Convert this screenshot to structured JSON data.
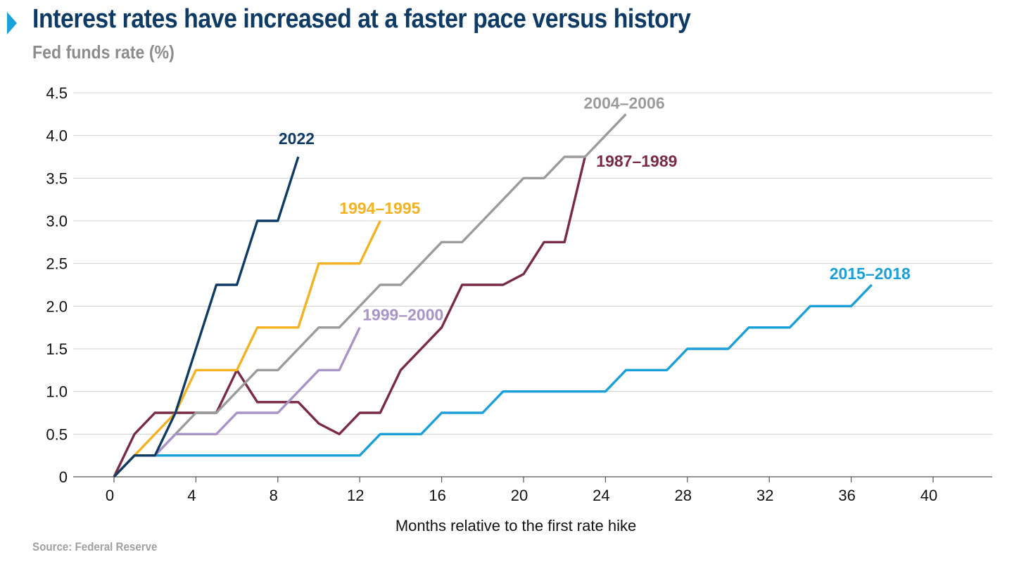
{
  "header": {
    "title": "Interest rates have increased at a faster pace versus history",
    "subtitle": "Fed funds rate (%)"
  },
  "footer": {
    "source": "Source: Federal Reserve"
  },
  "chart_data": {
    "type": "line",
    "title": "Interest rates have increased at a faster pace versus history",
    "subtitle": "Fed funds rate (%)",
    "xlabel": "Months relative to the first rate hike",
    "ylabel": "",
    "xlim": [
      -1,
      43
    ],
    "ylim": [
      0,
      4.5
    ],
    "xticks": [
      0,
      4,
      8,
      12,
      16,
      20,
      24,
      28,
      32,
      36,
      40
    ],
    "yticks": [
      0,
      0.5,
      1.0,
      1.5,
      2.0,
      2.5,
      3.0,
      3.5,
      4.0,
      4.5
    ],
    "ytick_labels": [
      "0",
      "0.5",
      "1.0",
      "1.5",
      "2.0",
      "2.5",
      "3.0",
      "3.5",
      "4.0",
      "4.5"
    ],
    "grid": "horizontal",
    "legend": "labels at line ends",
    "series": [
      {
        "name": "2022",
        "color": "#0e3a66",
        "x": [
          0,
          1,
          2,
          3,
          4,
          5,
          6,
          7,
          8,
          9
        ],
        "y": [
          0,
          0.25,
          0.25,
          0.75,
          1.5,
          2.25,
          2.25,
          3.0,
          3.0,
          3.75
        ]
      },
      {
        "name": "1994–1995",
        "color": "#f4b223",
        "x": [
          0,
          1,
          2,
          3,
          4,
          5,
          6,
          7,
          8,
          9,
          10,
          11,
          12,
          13
        ],
        "y": [
          0,
          0.25,
          0.5,
          0.75,
          1.25,
          1.25,
          1.25,
          1.75,
          1.75,
          1.75,
          2.5,
          2.5,
          2.5,
          3.0
        ]
      },
      {
        "name": "1999–2000",
        "color": "#a994c8",
        "x": [
          0,
          1,
          2,
          3,
          4,
          5,
          6,
          7,
          8,
          9,
          10,
          11,
          12
        ],
        "y": [
          0,
          0.25,
          0.25,
          0.5,
          0.5,
          0.5,
          0.75,
          0.75,
          0.75,
          1.0,
          1.25,
          1.25,
          1.75
        ]
      },
      {
        "name": "2004–2006",
        "color": "#9b9b9b",
        "x": [
          0,
          1,
          2,
          3,
          4,
          5,
          6,
          7,
          8,
          9,
          10,
          11,
          12,
          13,
          14,
          15,
          16,
          17,
          18,
          19,
          20,
          21,
          22,
          23,
          24,
          25
        ],
        "y": [
          0,
          0.25,
          0.25,
          0.5,
          0.75,
          0.75,
          1.0,
          1.25,
          1.25,
          1.5,
          1.75,
          1.75,
          2.0,
          2.25,
          2.25,
          2.5,
          2.75,
          2.75,
          3.0,
          3.25,
          3.5,
          3.5,
          3.75,
          3.75,
          4.0,
          4.25
        ]
      },
      {
        "name": "1987–1989",
        "color": "#7a2a45",
        "x": [
          0,
          1,
          2,
          3,
          4,
          5,
          6,
          7,
          8,
          9,
          10,
          11,
          12,
          13,
          14,
          15,
          16,
          17,
          18,
          19,
          20,
          21,
          22,
          23
        ],
        "y": [
          0,
          0.5,
          0.75,
          0.75,
          0.75,
          0.75,
          1.25,
          0.875,
          0.875,
          0.875,
          0.625,
          0.5,
          0.75,
          0.75,
          1.25,
          1.5,
          1.75,
          2.25,
          2.25,
          2.25,
          2.375,
          2.75,
          2.75,
          3.75
        ]
      },
      {
        "name": "2015–2018",
        "color": "#1a9fd9",
        "x": [
          0,
          1,
          2,
          3,
          4,
          5,
          6,
          7,
          8,
          9,
          10,
          11,
          12,
          13,
          14,
          15,
          16,
          17,
          18,
          19,
          20,
          21,
          22,
          23,
          24,
          25,
          26,
          27,
          28,
          29,
          30,
          31,
          32,
          33,
          34,
          35,
          36,
          37
        ],
        "y": [
          0,
          0.25,
          0.25,
          0.25,
          0.25,
          0.25,
          0.25,
          0.25,
          0.25,
          0.25,
          0.25,
          0.25,
          0.25,
          0.5,
          0.5,
          0.5,
          0.75,
          0.75,
          0.75,
          1.0,
          1.0,
          1.0,
          1.0,
          1.0,
          1.0,
          1.25,
          1.25,
          1.25,
          1.5,
          1.5,
          1.5,
          1.75,
          1.75,
          1.75,
          2.0,
          2.0,
          2.0,
          2.25
        ]
      }
    ]
  }
}
